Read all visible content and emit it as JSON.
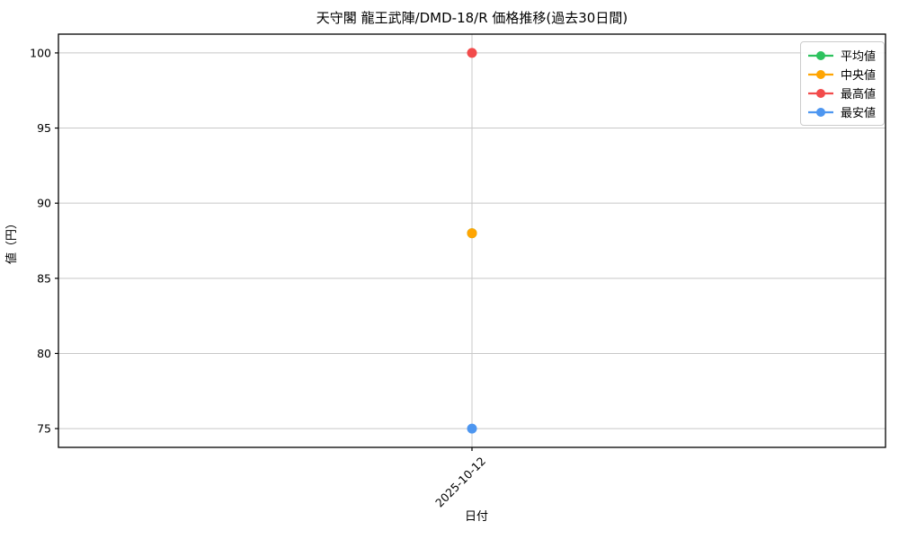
{
  "window": {
    "description": "price history chart"
  },
  "chart_data": {
    "type": "scatter",
    "title": "天守閣 龍王武陣/DMD-18/R 価格推移(過去30日間)",
    "xlabel": "日付",
    "ylabel": "値（円）",
    "x": [
      "2025-10-12"
    ],
    "series": [
      {
        "key": "average",
        "name": "平均値",
        "color": "#2dc25e",
        "values": [
          88
        ]
      },
      {
        "key": "median",
        "name": "中央値",
        "color": "#ffa502",
        "values": [
          88
        ]
      },
      {
        "key": "max",
        "name": "最高値",
        "color": "#f24b4b",
        "values": [
          100
        ]
      },
      {
        "key": "min",
        "name": "最安値",
        "color": "#4d96f0",
        "values": [
          75
        ]
      }
    ],
    "ylim": [
      73.75,
      101.25
    ],
    "yticks": [
      75,
      80,
      85,
      90,
      95,
      100
    ],
    "grid": true,
    "legend_position": "upper right",
    "colors": {
      "grid": "#c8c8c8",
      "axis": "#000000",
      "background": "#ffffff"
    }
  }
}
